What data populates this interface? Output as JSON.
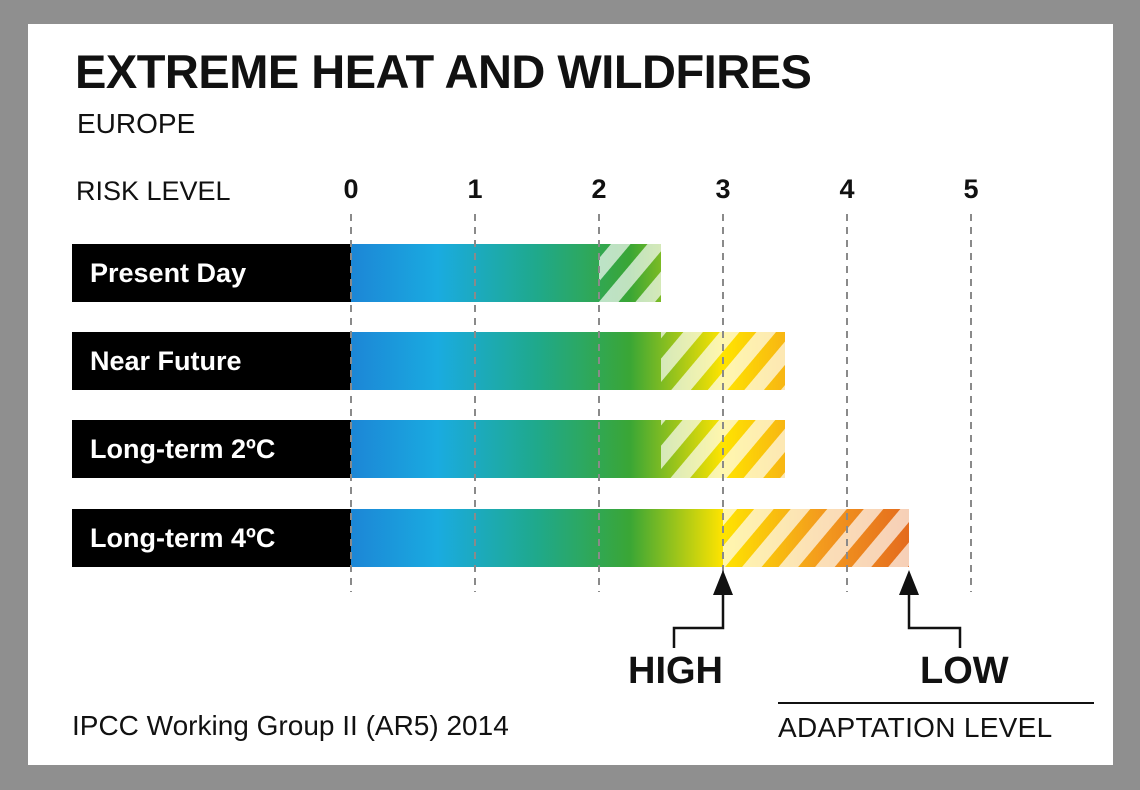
{
  "title": "EXTREME HEAT AND WILDFIRES",
  "subtitle": "EUROPE",
  "source": "IPCC Working Group II (AR5) 2014",
  "adaptation": {
    "axis_title": "ADAPTATION  LEVEL",
    "high_label": "HIGH",
    "low_label": "LOW"
  },
  "chart_data": {
    "type": "bar",
    "orientation": "horizontal",
    "title": "EXTREME HEAT AND WILDFIRES",
    "subtitle": "EUROPE",
    "xlabel": "RISK LEVEL",
    "ticks": [
      "0",
      "1",
      "2",
      "3",
      "4",
      "5"
    ],
    "xlim": [
      0,
      5
    ],
    "grid": true,
    "categories": [
      "Present Day",
      "Near Future",
      "Long-term 2ºC",
      "Long-term 4ºC"
    ],
    "series": [
      {
        "name": "HIGH",
        "values": [
          2.0,
          2.5,
          2.5,
          3.0
        ]
      },
      {
        "name": "LOW",
        "values": [
          2.5,
          3.5,
          3.5,
          4.5
        ]
      }
    ],
    "colors": {
      "blue": "#1c86d6",
      "cyan": "#1aabe0",
      "teal": "#1fa98b",
      "green": "#3aa635",
      "yellow": "#ffe400",
      "orange": "#f39a1e",
      "red-orange": "#e46b1e"
    }
  }
}
